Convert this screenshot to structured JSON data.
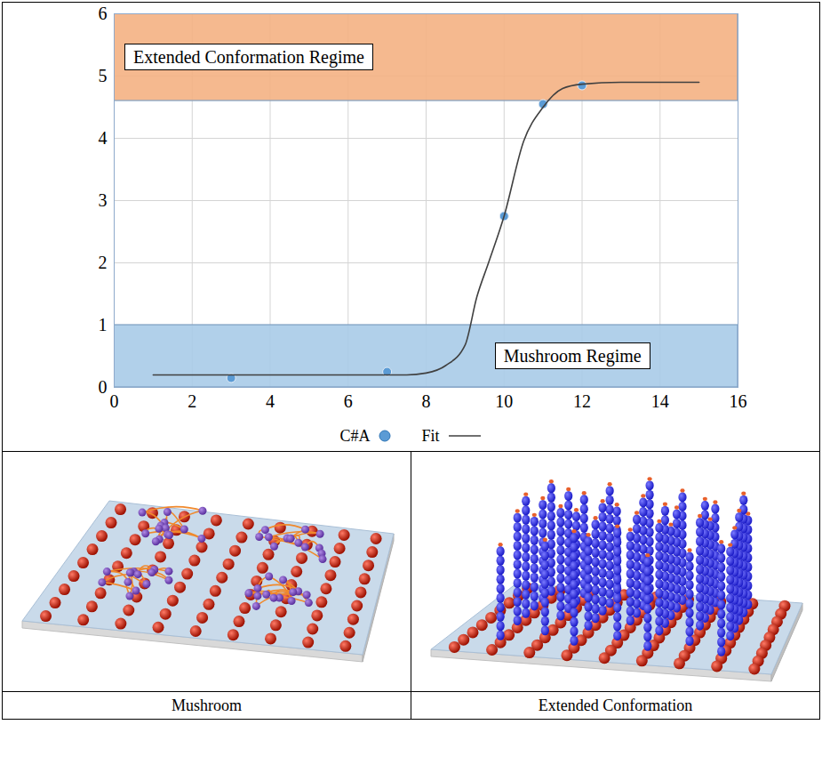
{
  "chart_data": {
    "type": "scatter",
    "xlim": [
      0,
      16
    ],
    "xticks": [
      0,
      2,
      4,
      6,
      8,
      10,
      12,
      14,
      16
    ],
    "ylim": [
      0,
      6
    ],
    "yticks": [
      0,
      1,
      2,
      3,
      4,
      5,
      6
    ],
    "grid": true,
    "legend": "bottom",
    "series": [
      {
        "name": "C#A",
        "type": "scatter",
        "marker": "circle",
        "color": "#5b9bd5",
        "x": [
          3,
          7,
          10,
          11,
          12
        ],
        "values": [
          0.15,
          0.25,
          2.75,
          4.55,
          4.85
        ]
      },
      {
        "name": "Fit",
        "type": "line",
        "line_style": "solid",
        "color": "#404040",
        "x": [
          1,
          2,
          3,
          4,
          5,
          6,
          7,
          7.5,
          8,
          8.5,
          9,
          9.3,
          9.6,
          10,
          10.5,
          11,
          11.5,
          12,
          13,
          14,
          15
        ],
        "values": [
          0.2,
          0.2,
          0.2,
          0.2,
          0.2,
          0.2,
          0.2,
          0.2,
          0.23,
          0.35,
          0.68,
          1.45,
          2.0,
          2.75,
          3.95,
          4.5,
          4.8,
          4.87,
          4.9,
          4.9,
          4.9
        ]
      }
    ],
    "regions": [
      {
        "label": "Extended Conformation Regime",
        "y": [
          4.6,
          6
        ],
        "color": "#f4b183"
      },
      {
        "label": "Mushroom Regime",
        "y": [
          0,
          1
        ],
        "color": "#a9cbe8"
      }
    ]
  },
  "illustrations": [
    {
      "caption": "Mushroom"
    },
    {
      "caption": "Extended Conformation"
    }
  ]
}
